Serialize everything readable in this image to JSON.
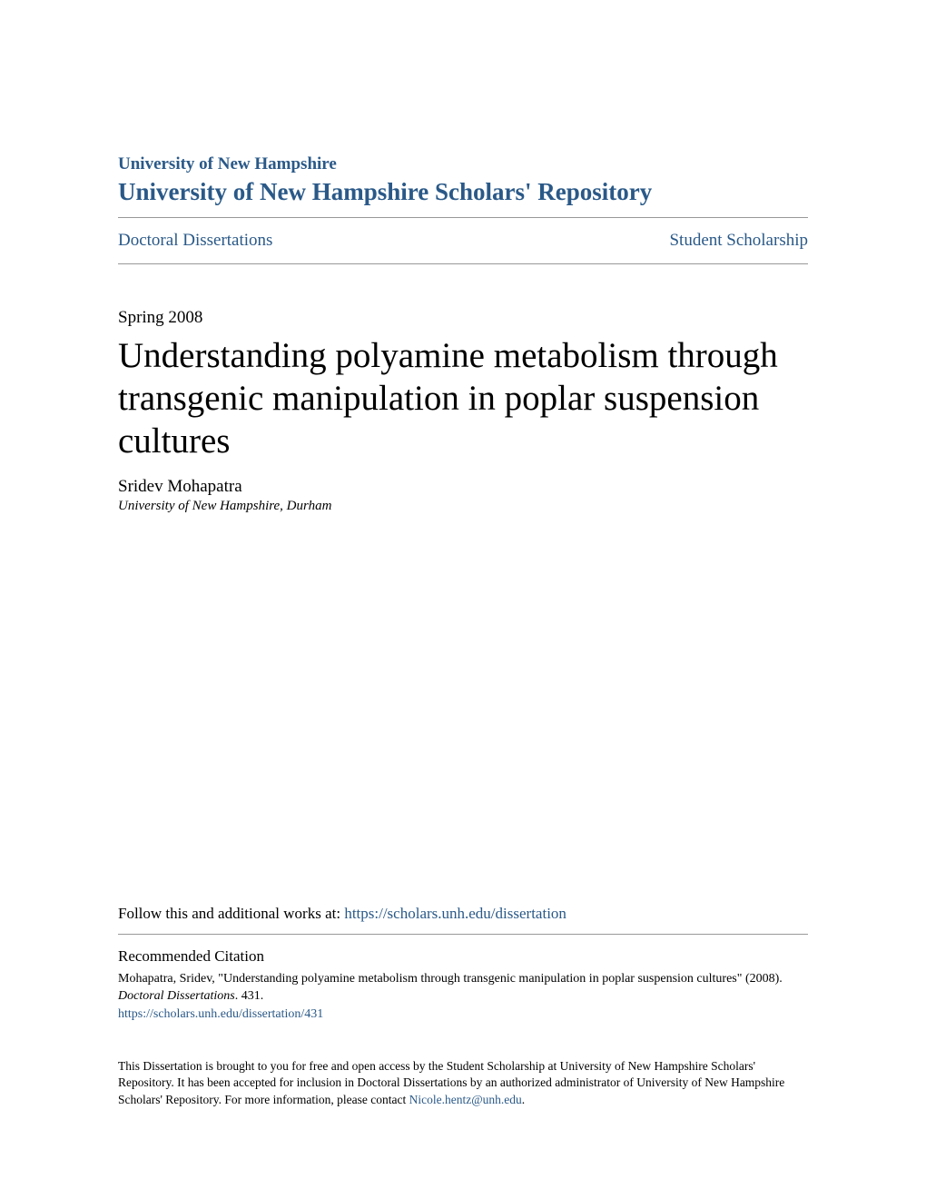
{
  "header": {
    "institution": "University of New Hampshire",
    "repository": "University of New Hampshire Scholars' Repository"
  },
  "breadcrumb": {
    "left": "Doctoral Dissertations",
    "right": "Student Scholarship"
  },
  "paper": {
    "date": "Spring 2008",
    "title": "Understanding polyamine metabolism through transgenic manipulation in poplar suspension cultures",
    "author": "Sridev Mohapatra",
    "affiliation": "University of New Hampshire, Durham"
  },
  "follow": {
    "prefix": "Follow this and additional works at: ",
    "url": "https://scholars.unh.edu/dissertation"
  },
  "citation": {
    "heading": "Recommended Citation",
    "text_part1": "Mohapatra, Sridev, \"Understanding polyamine metabolism through transgenic manipulation in poplar suspension cultures\" (2008). ",
    "series": "Doctoral Dissertations",
    "text_part2": ". 431.",
    "url": "https://scholars.unh.edu/dissertation/431"
  },
  "footer": {
    "text_part1": "This Dissertation is brought to you for free and open access by the Student Scholarship at University of New Hampshire Scholars' Repository. It has been accepted for inclusion in Doctoral Dissertations by an authorized administrator of University of New Hampshire Scholars' Repository. For more information, please contact ",
    "contact": "Nicole.hentz@unh.edu",
    "text_part2": "."
  },
  "colors": {
    "link": "#2a5988",
    "text": "#000000",
    "divider": "#999999",
    "background": "#ffffff"
  }
}
